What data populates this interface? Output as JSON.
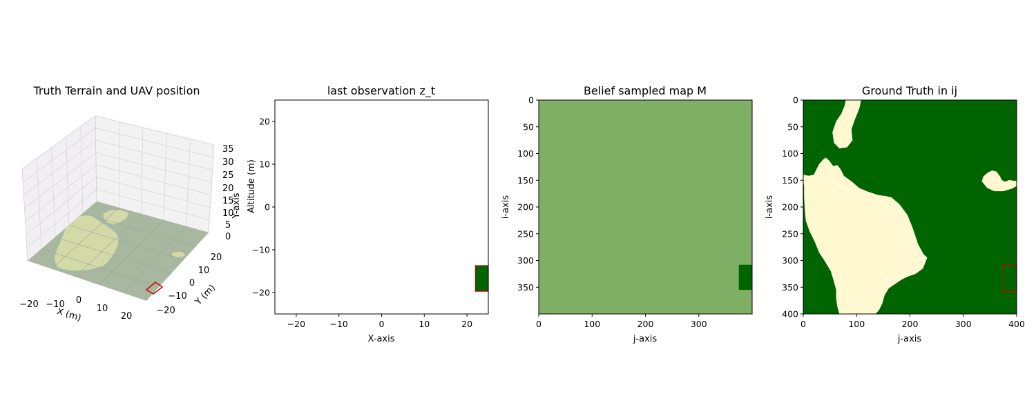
{
  "colors": {
    "forest": "#006400",
    "meadow": "#fff8d0",
    "belief": "#80b066",
    "uav_box": "#cc0000",
    "terrain_forest_3d": "#a8b8a0",
    "terrain_meadow_3d": "#d4d9a8"
  },
  "chart_data": [
    {
      "type": "3d-surface",
      "title": "Truth Terrain and UAV position",
      "xlabel": "X (m)",
      "ylabel": "Y (m)",
      "zlabel": "Y-axis",
      "x_ticks": [
        "−20",
        "−10",
        "0",
        "10",
        "20"
      ],
      "y_ticks": [
        "−20",
        "−10",
        "0",
        "10",
        "20"
      ],
      "z_ticks": [
        "0",
        "5",
        "10",
        "15",
        "20",
        "25",
        "30",
        "35"
      ],
      "xlim": [
        -25,
        25
      ],
      "ylim": [
        -25,
        25
      ],
      "zlim": [
        0,
        35
      ],
      "uav_footprint": {
        "x": [
          20,
          25
        ],
        "y": [
          -22,
          -17
        ]
      }
    },
    {
      "type": "heatmap",
      "title": "last observation z_t",
      "xlabel": "X-axis",
      "ylabel": "Altitude (m)",
      "xlim": [
        -25,
        25
      ],
      "ylim": [
        -25,
        25
      ],
      "x_ticks": [
        -20,
        -10,
        0,
        10,
        20
      ],
      "y_ticks": [
        20,
        10,
        0,
        -10,
        -20
      ],
      "x_tick_labels": [
        "−20",
        "−10",
        "0",
        "10",
        "20"
      ],
      "y_tick_labels": [
        "20",
        "10",
        "0",
        "−10",
        "−20"
      ],
      "observed_patch": {
        "x": [
          22,
          25
        ],
        "y": [
          -19.7,
          -13.7
        ],
        "class": "forest"
      }
    },
    {
      "type": "heatmap",
      "title": "Belief sampled map M",
      "xlabel": "j-axis",
      "ylabel": "i-axis",
      "xlim": [
        0,
        400
      ],
      "ylim": [
        400,
        0
      ],
      "x_ticks": [
        0,
        100,
        200,
        300
      ],
      "y_ticks": [
        0,
        50,
        100,
        150,
        200,
        250,
        300,
        350
      ],
      "default_belief": 0.5,
      "observed_patch": {
        "j": [
          375,
          400
        ],
        "i": [
          308,
          355
        ],
        "class": "forest"
      }
    },
    {
      "type": "heatmap",
      "title": "Ground Truth in ij",
      "xlabel": "j-axis",
      "ylabel": "i-axis",
      "xlim": [
        0,
        400
      ],
      "ylim": [
        400,
        0
      ],
      "x_ticks": [
        0,
        100,
        200,
        300,
        400
      ],
      "y_ticks": [
        0,
        50,
        100,
        150,
        200,
        250,
        300,
        350,
        400
      ],
      "classes": [
        "forest",
        "meadow"
      ],
      "uav_box": {
        "j": [
          375,
          400
        ],
        "i": [
          308,
          358
        ]
      },
      "meadow_regions": [
        [
          [
            80,
            0
          ],
          [
            108,
            0
          ],
          [
            105,
            15
          ],
          [
            95,
            40
          ],
          [
            90,
            55
          ],
          [
            92,
            75
          ],
          [
            82,
            88
          ],
          [
            68,
            90
          ],
          [
            58,
            80
          ],
          [
            55,
            60
          ],
          [
            62,
            40
          ],
          [
            72,
            25
          ],
          [
            78,
            10
          ]
        ],
        [
          [
            37,
            112
          ],
          [
            42,
            108
          ],
          [
            48,
            113
          ],
          [
            56,
            124
          ],
          [
            64,
            122
          ],
          [
            70,
            130
          ],
          [
            76,
            142
          ],
          [
            90,
            152
          ],
          [
            105,
            165
          ],
          [
            122,
            172
          ],
          [
            140,
            178
          ],
          [
            155,
            180
          ],
          [
            165,
            182
          ],
          [
            180,
            195
          ],
          [
            195,
            215
          ],
          [
            205,
            240
          ],
          [
            215,
            270
          ],
          [
            225,
            288
          ],
          [
            232,
            295
          ],
          [
            224,
            315
          ],
          [
            210,
            325
          ],
          [
            195,
            330
          ],
          [
            185,
            335
          ],
          [
            170,
            345
          ],
          [
            160,
            352
          ],
          [
            152,
            365
          ],
          [
            148,
            380
          ],
          [
            142,
            392
          ],
          [
            135,
            400
          ],
          [
            68,
            400
          ],
          [
            64,
            385
          ],
          [
            62,
            370
          ],
          [
            62,
            355
          ],
          [
            58,
            340
          ],
          [
            52,
            320
          ],
          [
            40,
            300
          ],
          [
            30,
            285
          ],
          [
            22,
            265
          ],
          [
            12,
            245
          ],
          [
            5,
            225
          ],
          [
            3,
            200
          ],
          [
            2,
            180
          ],
          [
            2,
            160
          ],
          [
            0,
            150
          ],
          [
            0,
            140
          ],
          [
            10,
            142
          ],
          [
            20,
            140
          ],
          [
            25,
            130
          ],
          [
            30,
            120
          ]
        ],
        [
          [
            335,
            152
          ],
          [
            338,
            143
          ],
          [
            346,
            136
          ],
          [
            354,
            132
          ],
          [
            362,
            134
          ],
          [
            368,
            142
          ],
          [
            372,
            150
          ],
          [
            378,
            153
          ],
          [
            386,
            150
          ],
          [
            400,
            152
          ],
          [
            400,
            160
          ],
          [
            392,
            165
          ],
          [
            375,
            170
          ],
          [
            358,
            170
          ],
          [
            345,
            164
          ]
        ]
      ]
    }
  ]
}
